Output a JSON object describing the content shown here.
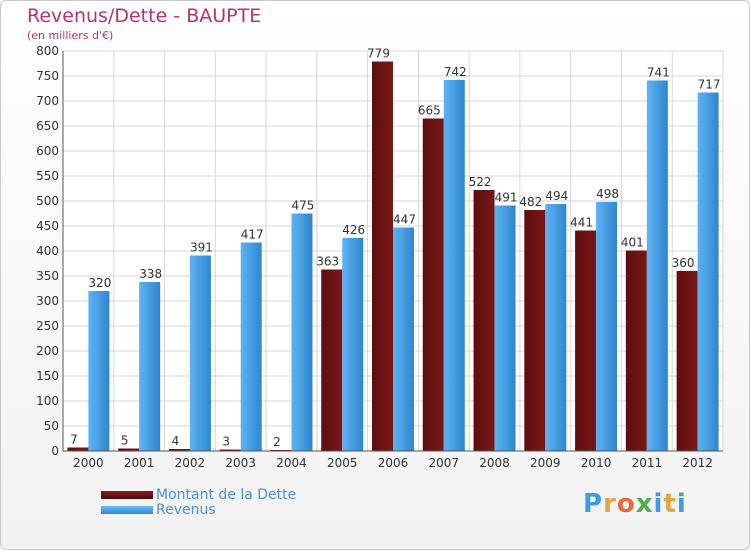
{
  "chart_data": {
    "type": "bar",
    "title": "Revenus/Dette - BAUPTE",
    "subtitle": "(en milliers d'€)",
    "categories": [
      "2000",
      "2001",
      "2002",
      "2003",
      "2004",
      "2005",
      "2006",
      "2007",
      "2008",
      "2009",
      "2010",
      "2011",
      "2012"
    ],
    "series": [
      {
        "name": "Montant de la Dette",
        "color": "#7a1717",
        "values": [
          7,
          5,
          4,
          3,
          2,
          363,
          779,
          665,
          522,
          482,
          441,
          401,
          360
        ]
      },
      {
        "name": "Revenus",
        "color": "#3d9be4",
        "values": [
          320,
          338,
          391,
          417,
          475,
          426,
          447,
          742,
          491,
          494,
          498,
          741,
          717
        ]
      }
    ],
    "ylim": [
      0,
      800
    ],
    "yticks": [
      0,
      50,
      100,
      150,
      200,
      250,
      300,
      350,
      400,
      450,
      500,
      550,
      600,
      650,
      700,
      750,
      800
    ],
    "grid": true,
    "legend_position": "bottom-left"
  },
  "logo": {
    "letters": [
      "P",
      "r",
      "o",
      "x",
      "i",
      "t",
      "i"
    ],
    "colors": [
      "#3d9be4",
      "#e8a33c",
      "#e86a3c",
      "#4caf50",
      "#3d9be4",
      "#e8a33c",
      "#3d9be4"
    ]
  }
}
